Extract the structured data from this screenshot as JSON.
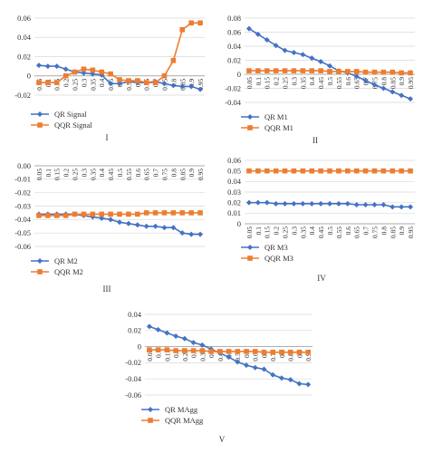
{
  "colors": {
    "qr": "#4472C4",
    "qqr": "#ED7D31",
    "axis": "#999999",
    "grid": "#D9D9D9"
  },
  "quantiles": [
    "0.05",
    "0.1",
    "0.15",
    "0.2",
    "0.25",
    "0.3",
    "0.35",
    "0.4",
    "0.45",
    "0.5",
    "0.55",
    "0.6",
    "0.65",
    "0.7",
    "0.75",
    "0.8",
    "0.85",
    "0.9",
    "0.95"
  ],
  "chart_data": [
    {
      "type": "line",
      "panel_label": "I",
      "ylim": [
        -0.02,
        0.06
      ],
      "yticks": [
        "-0.02",
        "0",
        "0.02",
        "0.04",
        "0.06"
      ],
      "grid": true,
      "legend_position": "bottom-left",
      "series": [
        {
          "name": "QR Signal",
          "marker": "diamond",
          "values": [
            0.011,
            0.01,
            0.01,
            0.007,
            0.004,
            0.003,
            0.002,
            0.001,
            -0.008,
            -0.008,
            -0.006,
            -0.007,
            -0.007,
            -0.006,
            -0.008,
            -0.01,
            -0.011,
            -0.011,
            -0.014
          ]
        },
        {
          "name": "QQR Signal",
          "marker": "square",
          "values": [
            -0.007,
            -0.007,
            -0.007,
            0.0,
            0.004,
            0.007,
            0.006,
            0.004,
            0.002,
            -0.004,
            -0.005,
            -0.005,
            -0.007,
            -0.007,
            0.0,
            0.016,
            0.048,
            0.055,
            0.055
          ]
        }
      ]
    },
    {
      "type": "line",
      "panel_label": "II",
      "ylim": [
        -0.04,
        0.08
      ],
      "yticks": [
        "-0.04",
        "-0.02",
        "0",
        "0.02",
        "0.04",
        "0.06",
        "0.08"
      ],
      "grid": true,
      "legend_position": "bottom-left",
      "series": [
        {
          "name": "QR M1",
          "marker": "diamond",
          "values": [
            0.065,
            0.057,
            0.049,
            0.041,
            0.034,
            0.031,
            0.028,
            0.023,
            0.018,
            0.012,
            0.005,
            0.002,
            -0.003,
            -0.009,
            -0.015,
            -0.02,
            -0.025,
            -0.03,
            -0.035
          ]
        },
        {
          "name": "QQR M1",
          "marker": "square",
          "values": [
            0.005,
            0.005,
            0.005,
            0.005,
            0.005,
            0.005,
            0.005,
            0.005,
            0.005,
            0.004,
            0.004,
            0.004,
            0.004,
            0.003,
            0.003,
            0.003,
            0.003,
            0.002,
            0.002
          ]
        }
      ]
    },
    {
      "type": "line",
      "panel_label": "III",
      "ylim": [
        -0.06,
        0.0
      ],
      "yticks": [
        "-0.06",
        "-0.05",
        "-0.04",
        "-0.03",
        "-0.02",
        "-0.01",
        "0.00"
      ],
      "grid": true,
      "legend_position": "bottom-left",
      "series": [
        {
          "name": "QR M2",
          "marker": "diamond",
          "values": [
            -0.036,
            -0.036,
            -0.036,
            -0.036,
            -0.036,
            -0.037,
            -0.038,
            -0.039,
            -0.04,
            -0.042,
            -0.043,
            -0.044,
            -0.045,
            -0.045,
            -0.046,
            -0.046,
            -0.05,
            -0.051,
            -0.051
          ]
        },
        {
          "name": "QQR M2",
          "marker": "square",
          "values": [
            -0.037,
            -0.037,
            -0.037,
            -0.037,
            -0.036,
            -0.036,
            -0.036,
            -0.036,
            -0.036,
            -0.036,
            -0.036,
            -0.036,
            -0.035,
            -0.035,
            -0.035,
            -0.035,
            -0.035,
            -0.035,
            -0.035
          ]
        }
      ]
    },
    {
      "type": "line",
      "panel_label": "IV",
      "ylim": [
        0.0,
        0.06
      ],
      "yticks": [
        "0",
        "0.01",
        "0.02",
        "0.03",
        "0.04",
        "0.05",
        "0.06"
      ],
      "grid": true,
      "legend_position": "bottom-left",
      "series": [
        {
          "name": "QR M3",
          "marker": "diamond",
          "values": [
            0.02,
            0.02,
            0.02,
            0.019,
            0.019,
            0.019,
            0.019,
            0.019,
            0.019,
            0.019,
            0.019,
            0.019,
            0.018,
            0.018,
            0.018,
            0.018,
            0.016,
            0.016,
            0.016
          ]
        },
        {
          "name": "QQR M3",
          "marker": "square",
          "values": [
            0.05,
            0.05,
            0.05,
            0.05,
            0.05,
            0.05,
            0.05,
            0.05,
            0.05,
            0.05,
            0.05,
            0.05,
            0.05,
            0.05,
            0.05,
            0.05,
            0.05,
            0.05,
            0.05
          ]
        }
      ]
    },
    {
      "type": "line",
      "panel_label": "V",
      "ylim": [
        -0.06,
        0.04
      ],
      "yticks": [
        "-0.06",
        "-0.04",
        "-0.02",
        "0",
        "0.02",
        "0.04"
      ],
      "grid": true,
      "legend_position": "bottom-left",
      "series": [
        {
          "name": "QR MAgg",
          "marker": "diamond",
          "values": [
            0.025,
            0.021,
            0.017,
            0.013,
            0.01,
            0.005,
            0.002,
            -0.003,
            -0.008,
            -0.013,
            -0.019,
            -0.023,
            -0.026,
            -0.028,
            -0.035,
            -0.039,
            -0.041,
            -0.046,
            -0.047
          ]
        },
        {
          "name": "QQR MAgg",
          "marker": "square",
          "values": [
            -0.004,
            -0.004,
            -0.004,
            -0.005,
            -0.005,
            -0.005,
            -0.005,
            -0.006,
            -0.006,
            -0.006,
            -0.006,
            -0.006,
            -0.006,
            -0.007,
            -0.007,
            -0.007,
            -0.007,
            -0.007,
            -0.007
          ]
        }
      ]
    }
  ]
}
